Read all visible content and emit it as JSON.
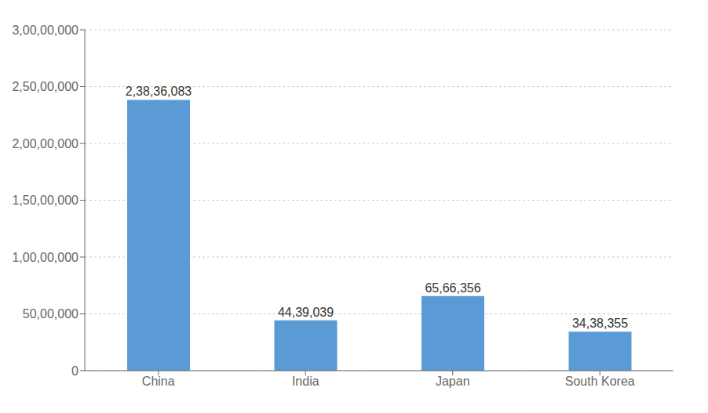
{
  "chart_data": {
    "type": "bar",
    "categories": [
      "China",
      "India",
      "Japan",
      "South Korea"
    ],
    "values": [
      23836083,
      4439039,
      6566356,
      3438355
    ],
    "value_labels": [
      "2,38,36,083",
      "44,39,039",
      "65,66,356",
      "34,38,355"
    ],
    "data_labels": true,
    "color": "#5B9BD5",
    "ylim": [
      0,
      30000000
    ],
    "yticks": [
      0,
      {
        "value": 5000000,
        "label": "50,00,000"
      },
      {
        "value": 10000000,
        "label": "1,00,00,000"
      },
      {
        "value": 15000000,
        "label": "1,50,00,000"
      },
      {
        "value": 20000000,
        "label": "2,00,00,000"
      },
      {
        "value": 25000000,
        "label": "2,50,00,000"
      },
      {
        "value": 30000000,
        "label": "3,00,00,000"
      }
    ],
    "grid": true
  }
}
